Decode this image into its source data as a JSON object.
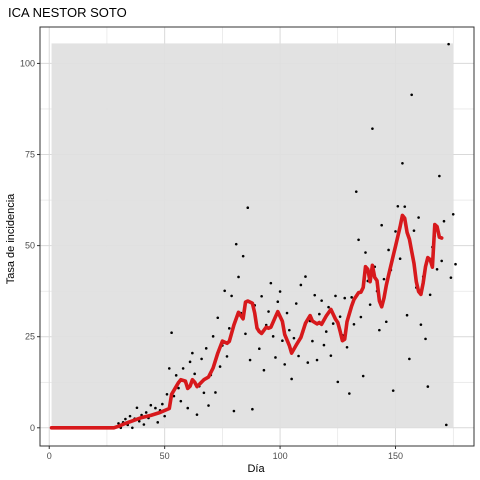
{
  "chart_data": {
    "type": "scatter",
    "title": "ICA NESTOR SOTO",
    "xlabel": "Día",
    "ylabel": "Tasa de incidencia",
    "xlim": [
      -4,
      184
    ],
    "ylim": [
      -5,
      110
    ],
    "x_ticks": [
      0,
      50,
      100,
      150
    ],
    "y_ticks": [
      0,
      25,
      50,
      75,
      100
    ],
    "grid": true,
    "legend": "none",
    "colors": {
      "points": "#000000",
      "smooth_line": "#d7191c",
      "band": "#e0e0e0",
      "grid": "#d9d9d9",
      "border": "#333333"
    },
    "band": {
      "x_range": [
        1,
        175
      ],
      "y_range": [
        0,
        105.5
      ]
    },
    "points": [
      [
        1,
        0
      ],
      [
        2,
        0
      ],
      [
        3,
        0
      ],
      [
        4,
        0
      ],
      [
        5,
        0
      ],
      [
        6,
        0
      ],
      [
        7,
        0
      ],
      [
        8,
        0
      ],
      [
        9,
        0
      ],
      [
        10,
        0
      ],
      [
        11,
        0
      ],
      [
        12,
        0
      ],
      [
        13,
        0
      ],
      [
        14,
        0
      ],
      [
        15,
        0
      ],
      [
        16,
        0
      ],
      [
        17,
        0
      ],
      [
        18,
        0
      ],
      [
        19,
        0
      ],
      [
        20,
        0
      ],
      [
        21,
        0
      ],
      [
        22,
        0
      ],
      [
        23,
        0
      ],
      [
        24,
        0
      ],
      [
        25,
        0
      ],
      [
        26,
        0
      ],
      [
        27,
        0
      ],
      [
        28,
        0
      ],
      [
        29,
        0.3
      ],
      [
        30,
        1.2
      ],
      [
        31,
        0
      ],
      [
        32,
        1.5
      ],
      [
        33,
        2.4
      ],
      [
        34,
        0.8
      ],
      [
        35,
        3.2
      ],
      [
        36,
        0
      ],
      [
        37,
        2.5
      ],
      [
        38,
        5.5
      ],
      [
        39,
        1.8
      ],
      [
        40,
        3.5
      ],
      [
        41,
        0.9
      ],
      [
        42,
        4.2
      ],
      [
        43,
        2.7
      ],
      [
        44,
        6.2
      ],
      [
        45,
        3.6
      ],
      [
        46,
        5.4
      ],
      [
        47,
        1.5
      ],
      [
        48,
        4.8
      ],
      [
        49,
        6.5
      ],
      [
        50,
        3.2
      ],
      [
        51,
        9.2
      ],
      [
        52,
        16.3
      ],
      [
        53,
        26.1
      ],
      [
        54,
        8.7
      ],
      [
        55,
        14.4
      ],
      [
        56,
        10.9
      ],
      [
        57,
        7.3
      ],
      [
        58,
        16.3
      ],
      [
        59,
        12.5
      ],
      [
        60,
        5.4
      ],
      [
        61,
        18.1
      ],
      [
        62,
        20.5
      ],
      [
        63,
        14.8
      ],
      [
        64,
        3.6
      ],
      [
        65,
        11.4
      ],
      [
        66,
        18.9
      ],
      [
        67,
        9.6
      ],
      [
        68,
        21.8
      ],
      [
        69,
        6.1
      ],
      [
        70,
        14.5
      ],
      [
        71,
        25.1
      ],
      [
        72,
        9.7
      ],
      [
        73,
        30.2
      ],
      [
        74,
        16.8
      ],
      [
        75,
        22.6
      ],
      [
        76,
        37.6
      ],
      [
        77,
        19.6
      ],
      [
        78,
        27.3
      ],
      [
        79,
        36.2
      ],
      [
        80,
        4.6
      ],
      [
        81,
        50.4
      ],
      [
        82,
        41.4
      ],
      [
        83,
        31.5
      ],
      [
        84,
        47.1
      ],
      [
        85,
        25.8
      ],
      [
        86,
        60.4
      ],
      [
        87,
        18.6
      ],
      [
        88,
        5.1
      ],
      [
        89,
        33.6
      ],
      [
        90,
        27.9
      ],
      [
        91,
        21.7
      ],
      [
        92,
        36.1
      ],
      [
        93,
        15.8
      ],
      [
        94,
        28.2
      ],
      [
        95,
        31.9
      ],
      [
        96,
        39.7
      ],
      [
        97,
        25.1
      ],
      [
        98,
        19.3
      ],
      [
        99,
        34.6
      ],
      [
        100,
        37.4
      ],
      [
        101,
        23.9
      ],
      [
        102,
        17.4
      ],
      [
        103,
        31.5
      ],
      [
        104,
        26.8
      ],
      [
        105,
        13.4
      ],
      [
        106,
        24.6
      ],
      [
        107,
        34.1
      ],
      [
        108,
        19.7
      ],
      [
        109,
        39.2
      ],
      [
        110,
        26.4
      ],
      [
        111,
        41.5
      ],
      [
        112,
        17.9
      ],
      [
        113,
        29.3
      ],
      [
        114,
        23.8
      ],
      [
        115,
        36.4
      ],
      [
        116,
        18.6
      ],
      [
        117,
        31.2
      ],
      [
        118,
        34.9
      ],
      [
        119,
        22.7
      ],
      [
        120,
        26.4
      ],
      [
        121,
        33.1
      ],
      [
        122,
        19.8
      ],
      [
        123,
        28.6
      ],
      [
        124,
        36.2
      ],
      [
        125,
        12.6
      ],
      [
        126,
        30.5
      ],
      [
        127,
        25.4
      ],
      [
        128,
        35.6
      ],
      [
        129,
        22.1
      ],
      [
        130,
        9.4
      ],
      [
        131,
        35.8
      ],
      [
        132,
        28.4
      ],
      [
        133,
        64.8
      ],
      [
        134,
        51.6
      ],
      [
        135,
        30.4
      ],
      [
        136,
        14.2
      ],
      [
        137,
        48.1
      ],
      [
        138,
        40.3
      ],
      [
        139,
        33.8
      ],
      [
        140,
        82.1
      ],
      [
        141,
        44.2
      ],
      [
        142,
        37.5
      ],
      [
        143,
        26.8
      ],
      [
        144,
        55.6
      ],
      [
        145,
        40.8
      ],
      [
        146,
        29.1
      ],
      [
        147,
        48.8
      ],
      [
        148,
        43.3
      ],
      [
        149,
        10.2
      ],
      [
        150,
        53.9
      ],
      [
        151,
        60.8
      ],
      [
        152,
        46.4
      ],
      [
        153,
        72.6
      ],
      [
        154,
        60.7
      ],
      [
        155,
        30.9
      ],
      [
        156,
        18.9
      ],
      [
        157,
        91.4
      ],
      [
        158,
        54.1
      ],
      [
        159,
        38.5
      ],
      [
        160,
        57.7
      ],
      [
        161,
        28.3
      ],
      [
        162,
        41.5
      ],
      [
        163,
        24.4
      ],
      [
        164,
        11.3
      ],
      [
        165,
        36.5
      ],
      [
        166,
        49.6
      ],
      [
        167,
        52.7
      ],
      [
        168,
        43.5
      ],
      [
        169,
        69.1
      ],
      [
        170,
        45.8
      ],
      [
        171,
        56.7
      ],
      [
        172,
        0.8
      ],
      [
        173,
        105.3
      ],
      [
        174,
        41.2
      ],
      [
        175,
        58.6
      ],
      [
        176,
        44.9
      ]
    ],
    "smooth_line": [
      [
        1,
        0
      ],
      [
        28,
        0
      ],
      [
        30,
        0.4
      ],
      [
        33,
        1.2
      ],
      [
        36,
        1.9
      ],
      [
        40,
        2.8
      ],
      [
        44,
        3.4
      ],
      [
        48,
        4.2
      ],
      [
        52,
        5.3
      ],
      [
        53,
        9.2
      ],
      [
        56,
        12.4
      ],
      [
        57,
        13.2
      ],
      [
        59,
        12.8
      ],
      [
        60,
        10.8
      ],
      [
        61,
        11.4
      ],
      [
        62,
        13.2
      ],
      [
        63,
        12.5
      ],
      [
        64,
        11.3
      ],
      [
        65,
        11.9
      ],
      [
        67,
        13.2
      ],
      [
        69,
        13.9
      ],
      [
        71,
        16.4
      ],
      [
        73,
        20.5
      ],
      [
        75,
        23.8
      ],
      [
        77,
        23.2
      ],
      [
        78,
        23.7
      ],
      [
        80,
        28.2
      ],
      [
        82,
        31.7
      ],
      [
        84,
        29.9
      ],
      [
        85,
        34.5
      ],
      [
        86,
        34.8
      ],
      [
        88,
        34.2
      ],
      [
        89,
        31.5
      ],
      [
        90,
        27.4
      ],
      [
        91,
        26.4
      ],
      [
        92,
        25.9
      ],
      [
        94,
        27.6
      ],
      [
        95,
        27.3
      ],
      [
        96,
        27.6
      ],
      [
        98,
        30.5
      ],
      [
        99,
        31.9
      ],
      [
        101,
        29.2
      ],
      [
        102,
        25.6
      ],
      [
        104,
        22.6
      ],
      [
        105,
        20.5
      ],
      [
        107,
        22.7
      ],
      [
        109,
        24.8
      ],
      [
        111,
        28.7
      ],
      [
        113,
        30.8
      ],
      [
        114,
        29.3
      ],
      [
        116,
        28.5
      ],
      [
        117,
        28.9
      ],
      [
        118,
        28.4
      ],
      [
        120,
        30.7
      ],
      [
        121,
        31.6
      ],
      [
        122,
        32.5
      ],
      [
        124,
        29.8
      ],
      [
        125,
        28.9
      ],
      [
        126,
        26.5
      ],
      [
        127,
        23.9
      ],
      [
        128,
        24.3
      ],
      [
        129,
        29.1
      ],
      [
        131,
        33.4
      ],
      [
        132,
        35.2
      ],
      [
        134,
        37.1
      ],
      [
        135,
        37.2
      ],
      [
        136,
        38.5
      ],
      [
        137,
        44.2
      ],
      [
        138,
        43.5
      ],
      [
        139,
        40.1
      ],
      [
        140,
        44.6
      ],
      [
        141,
        41.3
      ],
      [
        142,
        40.4
      ],
      [
        143,
        34.8
      ],
      [
        144,
        33.2
      ],
      [
        145,
        35.6
      ],
      [
        146,
        39.1
      ],
      [
        147,
        41.9
      ],
      [
        149,
        47.2
      ],
      [
        150,
        49.8
      ],
      [
        151,
        52.5
      ],
      [
        152,
        55.2
      ],
      [
        153,
        58.3
      ],
      [
        154,
        57.5
      ],
      [
        155,
        53.6
      ],
      [
        156,
        51.8
      ],
      [
        157,
        48.4
      ],
      [
        158,
        45.1
      ],
      [
        159,
        40.1
      ],
      [
        160,
        37.4
      ],
      [
        161,
        36.6
      ],
      [
        162,
        39.8
      ],
      [
        163,
        44.2
      ],
      [
        164,
        46.7
      ],
      [
        165,
        46.2
      ],
      [
        166,
        44.1
      ],
      [
        167,
        55.8
      ],
      [
        168,
        55.2
      ],
      [
        169,
        52.3
      ],
      [
        170,
        52.1
      ]
    ]
  }
}
